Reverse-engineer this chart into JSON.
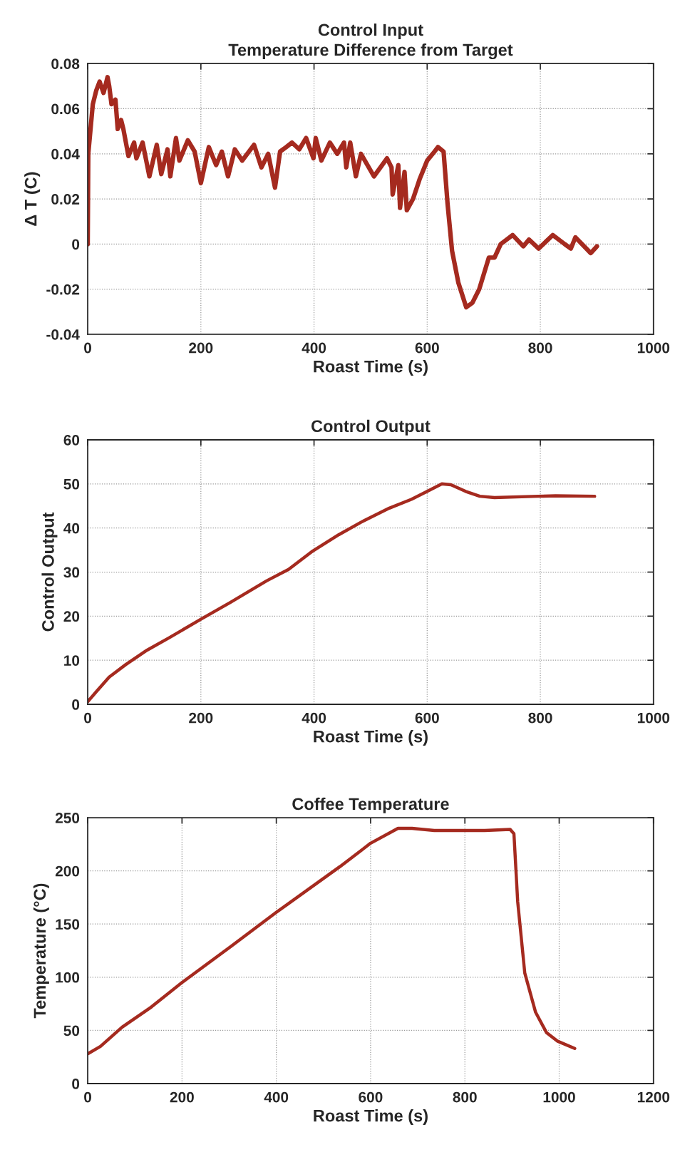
{
  "chart_data": [
    {
      "type": "line",
      "title": "Control Input",
      "subtitle": "Temperature Difference from Target",
      "xlabel": "Roast Time (s)",
      "ylabel": "Δ T (C)",
      "xlim": [
        0,
        1000
      ],
      "xticks": [
        0,
        200,
        400,
        600,
        800,
        1000
      ],
      "ylim": [
        -0.04,
        0.08
      ],
      "yticks": [
        -0.04,
        -0.02,
        0,
        0.02,
        0.04,
        0.06,
        0.08
      ],
      "grid": true,
      "series": [
        {
          "color": "#a52a1f",
          "x": [
            0,
            1,
            9,
            15,
            21,
            28,
            35,
            38,
            42,
            49,
            53,
            59,
            63,
            72,
            82,
            86,
            97,
            109,
            122,
            130,
            141,
            146,
            156,
            162,
            177,
            189,
            200,
            214,
            227,
            237,
            248,
            260,
            273,
            294,
            307,
            319,
            331,
            340,
            351,
            361,
            374,
            386,
            399,
            403,
            413,
            428,
            441,
            453,
            457,
            464,
            474,
            483,
            506,
            529,
            537,
            539,
            549,
            552,
            560,
            564,
            575,
            587,
            600,
            613,
            619,
            629,
            636,
            644,
            655,
            669,
            680,
            692,
            709,
            719,
            730,
            751,
            770,
            780,
            797,
            822,
            843,
            854,
            862,
            889,
            900
          ],
          "values": [
            0,
            0.04,
            0.062,
            0.068,
            0.072,
            0.067,
            0.074,
            0.07,
            0.062,
            0.064,
            0.051,
            0.055,
            0.051,
            0.039,
            0.045,
            0.038,
            0.045,
            0.03,
            0.044,
            0.031,
            0.042,
            0.03,
            0.047,
            0.037,
            0.046,
            0.041,
            0.027,
            0.043,
            0.035,
            0.041,
            0.03,
            0.042,
            0.037,
            0.044,
            0.034,
            0.04,
            0.025,
            0.041,
            0.043,
            0.045,
            0.042,
            0.047,
            0.038,
            0.047,
            0.037,
            0.045,
            0.04,
            0.045,
            0.034,
            0.045,
            0.03,
            0.04,
            0.03,
            0.038,
            0.034,
            0.022,
            0.035,
            0.016,
            0.032,
            0.015,
            0.02,
            0.029,
            0.037,
            0.041,
            0.043,
            0.041,
            0.018,
            -0.003,
            -0.017,
            -0.028,
            -0.026,
            -0.02,
            -0.006,
            -0.006,
            0.0,
            0.004,
            -0.001,
            0.002,
            -0.002,
            0.004,
            0.0,
            -0.002,
            0.003,
            -0.004,
            -0.001
          ]
        }
      ]
    },
    {
      "type": "line",
      "title": "Control Output",
      "xlabel": "Roast Time (s)",
      "ylabel": "Control Output",
      "xlim": [
        0,
        1000
      ],
      "xticks": [
        0,
        200,
        400,
        600,
        800,
        1000
      ],
      "ylim": [
        0,
        60
      ],
      "yticks": [
        0,
        10,
        20,
        30,
        40,
        50,
        60
      ],
      "grid": true,
      "series": [
        {
          "color": "#a52a1f",
          "x": [
            0,
            16,
            38,
            67,
            105,
            144,
            200,
            252,
            316,
            355,
            398,
            444,
            483,
            533,
            572,
            597,
            626,
            642,
            668,
            693,
            719,
            796,
            827,
            896
          ],
          "values": [
            0.6,
            3.0,
            6.2,
            9.0,
            12.3,
            15.1,
            19.3,
            23.1,
            28.0,
            30.6,
            34.8,
            38.5,
            41.3,
            44.5,
            46.5,
            48.1,
            50.0,
            49.8,
            48.3,
            47.2,
            46.9,
            47.2,
            47.3,
            47.2
          ]
        }
      ]
    },
    {
      "type": "line",
      "title": "Coffee Temperature",
      "xlabel": "Roast Time (s)",
      "ylabel": "Temperature (°C)",
      "xlim": [
        0,
        1200
      ],
      "xticks": [
        0,
        200,
        400,
        600,
        800,
        1000,
        1200
      ],
      "ylim": [
        0,
        250
      ],
      "yticks": [
        0,
        50,
        100,
        150,
        200,
        250
      ],
      "grid": true,
      "series": [
        {
          "color": "#a52a1f",
          "x": [
            0,
            27,
            73,
            135,
            200,
            304,
            400,
            535,
            600,
            658,
            688,
            735,
            842,
            896,
            904,
            912,
            927,
            950,
            973,
            996,
            1033
          ],
          "values": [
            28,
            35,
            53,
            72,
            95,
            129,
            161,
            204,
            226,
            240,
            240,
            238,
            238,
            239,
            235,
            171,
            104,
            67,
            48,
            40,
            33
          ]
        }
      ]
    }
  ]
}
